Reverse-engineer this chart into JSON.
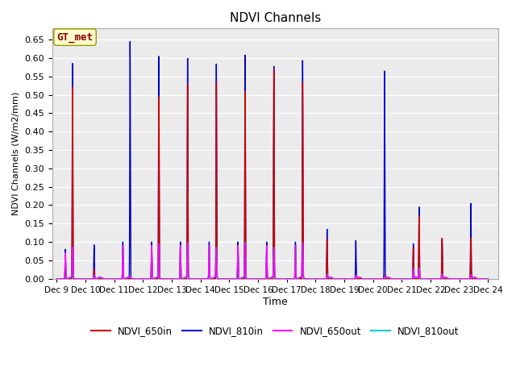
{
  "title": "NDVI Channels",
  "ylabel": "NDVI Channels (W/m2/mm)",
  "xlabel": "Time",
  "ylim": [
    0.0,
    0.68
  ],
  "yticks": [
    0.0,
    0.05,
    0.1,
    0.15,
    0.2,
    0.25,
    0.3,
    0.35,
    0.4,
    0.45,
    0.5,
    0.55,
    0.6,
    0.65
  ],
  "xtick_labels": [
    "Dec 9",
    "Dec 10",
    "Dec 11",
    "Dec 12",
    "Dec 13",
    "Dec 14",
    "Dec 15",
    "Dec 16",
    "Dec 17",
    "Dec 18",
    "Dec 19",
    "Dec 20",
    "Dec 21",
    "Dec 22",
    "Dec 23",
    "Dec 24"
  ],
  "annotation_text": "GT_met",
  "bg_color": "#ebebeb",
  "grid_color": "#ffffff",
  "series": {
    "NDVI_650in": {
      "color": "#cc0000",
      "lw": 1.0
    },
    "NDVI_810in": {
      "color": "#0000cc",
      "lw": 1.0
    },
    "NDVI_650out": {
      "color": "#ff00ff",
      "lw": 1.0
    },
    "NDVI_810out": {
      "color": "#00cccc",
      "lw": 1.0
    }
  }
}
